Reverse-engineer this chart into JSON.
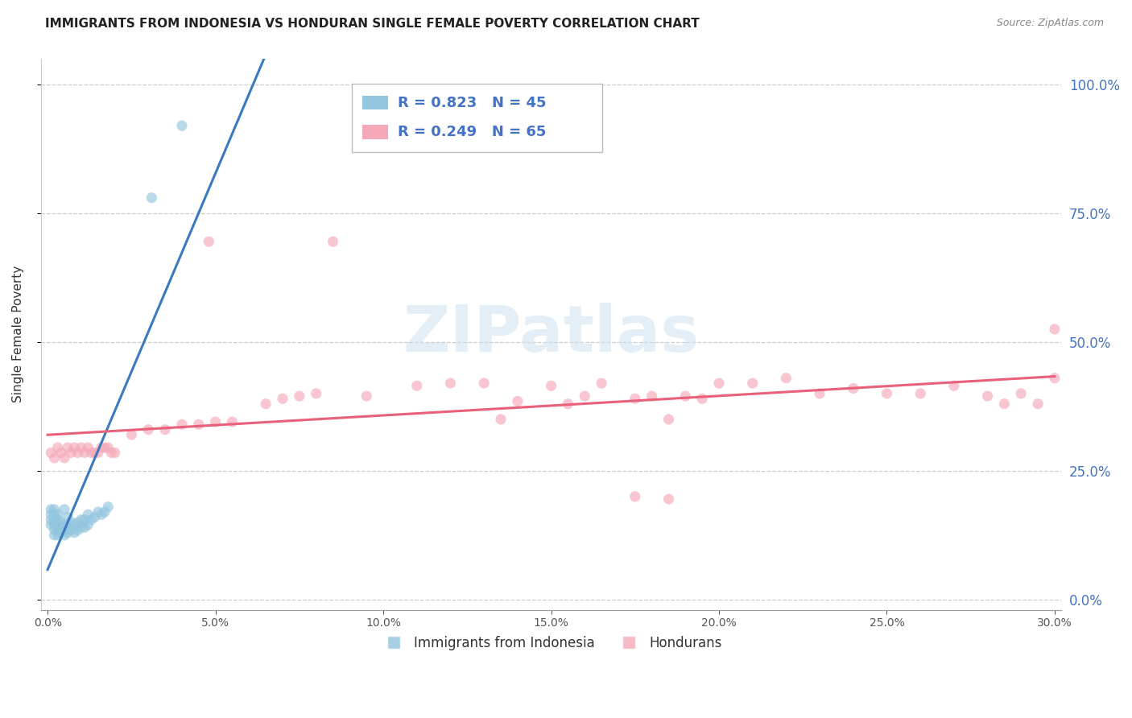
{
  "title": "IMMIGRANTS FROM INDONESIA VS HONDURAN SINGLE FEMALE POVERTY CORRELATION CHART",
  "source": "Source: ZipAtlas.com",
  "ylabel": "Single Female Poverty",
  "legend_labels": [
    "Immigrants from Indonesia",
    "Hondurans"
  ],
  "legend_R": [
    0.823,
    0.249
  ],
  "legend_N": [
    45,
    65
  ],
  "blue_color": "#92c5de",
  "pink_color": "#f4a8b8",
  "blue_line_color": "#3a7abf",
  "pink_line_color": "#e8607a",
  "axis_label_color": "#4472c4",
  "title_color": "#222222",
  "source_color": "#888888",
  "grid_color": "#cccccc",
  "spine_color": "#cccccc",
  "xlim_min": 0.0,
  "xlim_max": 0.3,
  "ylim_min": -0.02,
  "ylim_max": 1.05,
  "yticks_right": [
    0.0,
    0.25,
    0.5,
    0.75,
    1.0
  ],
  "xtick_labels": [
    "0.0%",
    "5.0%",
    "10.0%",
    "15.0%",
    "20.0%",
    "25.0%",
    "30.0%"
  ],
  "blue_x": [
    0.001,
    0.001,
    0.001,
    0.001,
    0.002,
    0.002,
    0.002,
    0.002,
    0.002,
    0.002,
    0.003,
    0.003,
    0.003,
    0.003,
    0.003,
    0.004,
    0.004,
    0.004,
    0.005,
    0.005,
    0.005,
    0.005,
    0.006,
    0.006,
    0.006,
    0.007,
    0.007,
    0.008,
    0.008,
    0.009,
    0.009,
    0.01,
    0.01,
    0.011,
    0.011,
    0.012,
    0.012,
    0.013,
    0.014,
    0.015,
    0.016,
    0.017,
    0.018,
    0.031,
    0.04
  ],
  "blue_y": [
    0.145,
    0.155,
    0.165,
    0.175,
    0.125,
    0.135,
    0.145,
    0.155,
    0.165,
    0.175,
    0.125,
    0.135,
    0.145,
    0.155,
    0.165,
    0.13,
    0.14,
    0.15,
    0.125,
    0.135,
    0.145,
    0.175,
    0.13,
    0.145,
    0.16,
    0.135,
    0.15,
    0.13,
    0.145,
    0.135,
    0.15,
    0.14,
    0.155,
    0.14,
    0.155,
    0.145,
    0.165,
    0.155,
    0.16,
    0.17,
    0.165,
    0.17,
    0.18,
    0.78,
    0.92
  ],
  "pink_x": [
    0.001,
    0.002,
    0.003,
    0.004,
    0.005,
    0.006,
    0.007,
    0.008,
    0.009,
    0.01,
    0.011,
    0.012,
    0.013,
    0.014,
    0.015,
    0.016,
    0.017,
    0.018,
    0.019,
    0.02,
    0.025,
    0.03,
    0.035,
    0.04,
    0.045,
    0.05,
    0.055,
    0.065,
    0.07,
    0.075,
    0.08,
    0.095,
    0.11,
    0.12,
    0.13,
    0.135,
    0.14,
    0.15,
    0.155,
    0.16,
    0.165,
    0.175,
    0.18,
    0.185,
    0.19,
    0.195,
    0.2,
    0.21,
    0.22,
    0.23,
    0.24,
    0.25,
    0.26,
    0.27,
    0.28,
    0.285,
    0.29,
    0.295,
    0.3,
    0.305,
    0.048,
    0.085,
    0.175,
    0.185,
    0.3
  ],
  "pink_y": [
    0.285,
    0.275,
    0.295,
    0.285,
    0.275,
    0.295,
    0.285,
    0.295,
    0.285,
    0.295,
    0.285,
    0.295,
    0.285,
    0.285,
    0.285,
    0.295,
    0.295,
    0.295,
    0.285,
    0.285,
    0.32,
    0.33,
    0.33,
    0.34,
    0.34,
    0.345,
    0.345,
    0.38,
    0.39,
    0.395,
    0.4,
    0.395,
    0.415,
    0.42,
    0.42,
    0.35,
    0.385,
    0.415,
    0.38,
    0.395,
    0.42,
    0.39,
    0.395,
    0.35,
    0.395,
    0.39,
    0.42,
    0.42,
    0.43,
    0.4,
    0.41,
    0.4,
    0.4,
    0.415,
    0.395,
    0.38,
    0.4,
    0.38,
    0.43,
    0.44,
    0.695,
    0.695,
    0.2,
    0.195,
    0.525
  ],
  "title_fontsize": 11,
  "axis_fontsize": 11,
  "tick_fontsize": 10,
  "legend_fontsize": 13,
  "background_color": "#ffffff",
  "watermark_text": "ZIPatlas",
  "watermark_color": "#cce0f0",
  "watermark_alpha": 0.55
}
